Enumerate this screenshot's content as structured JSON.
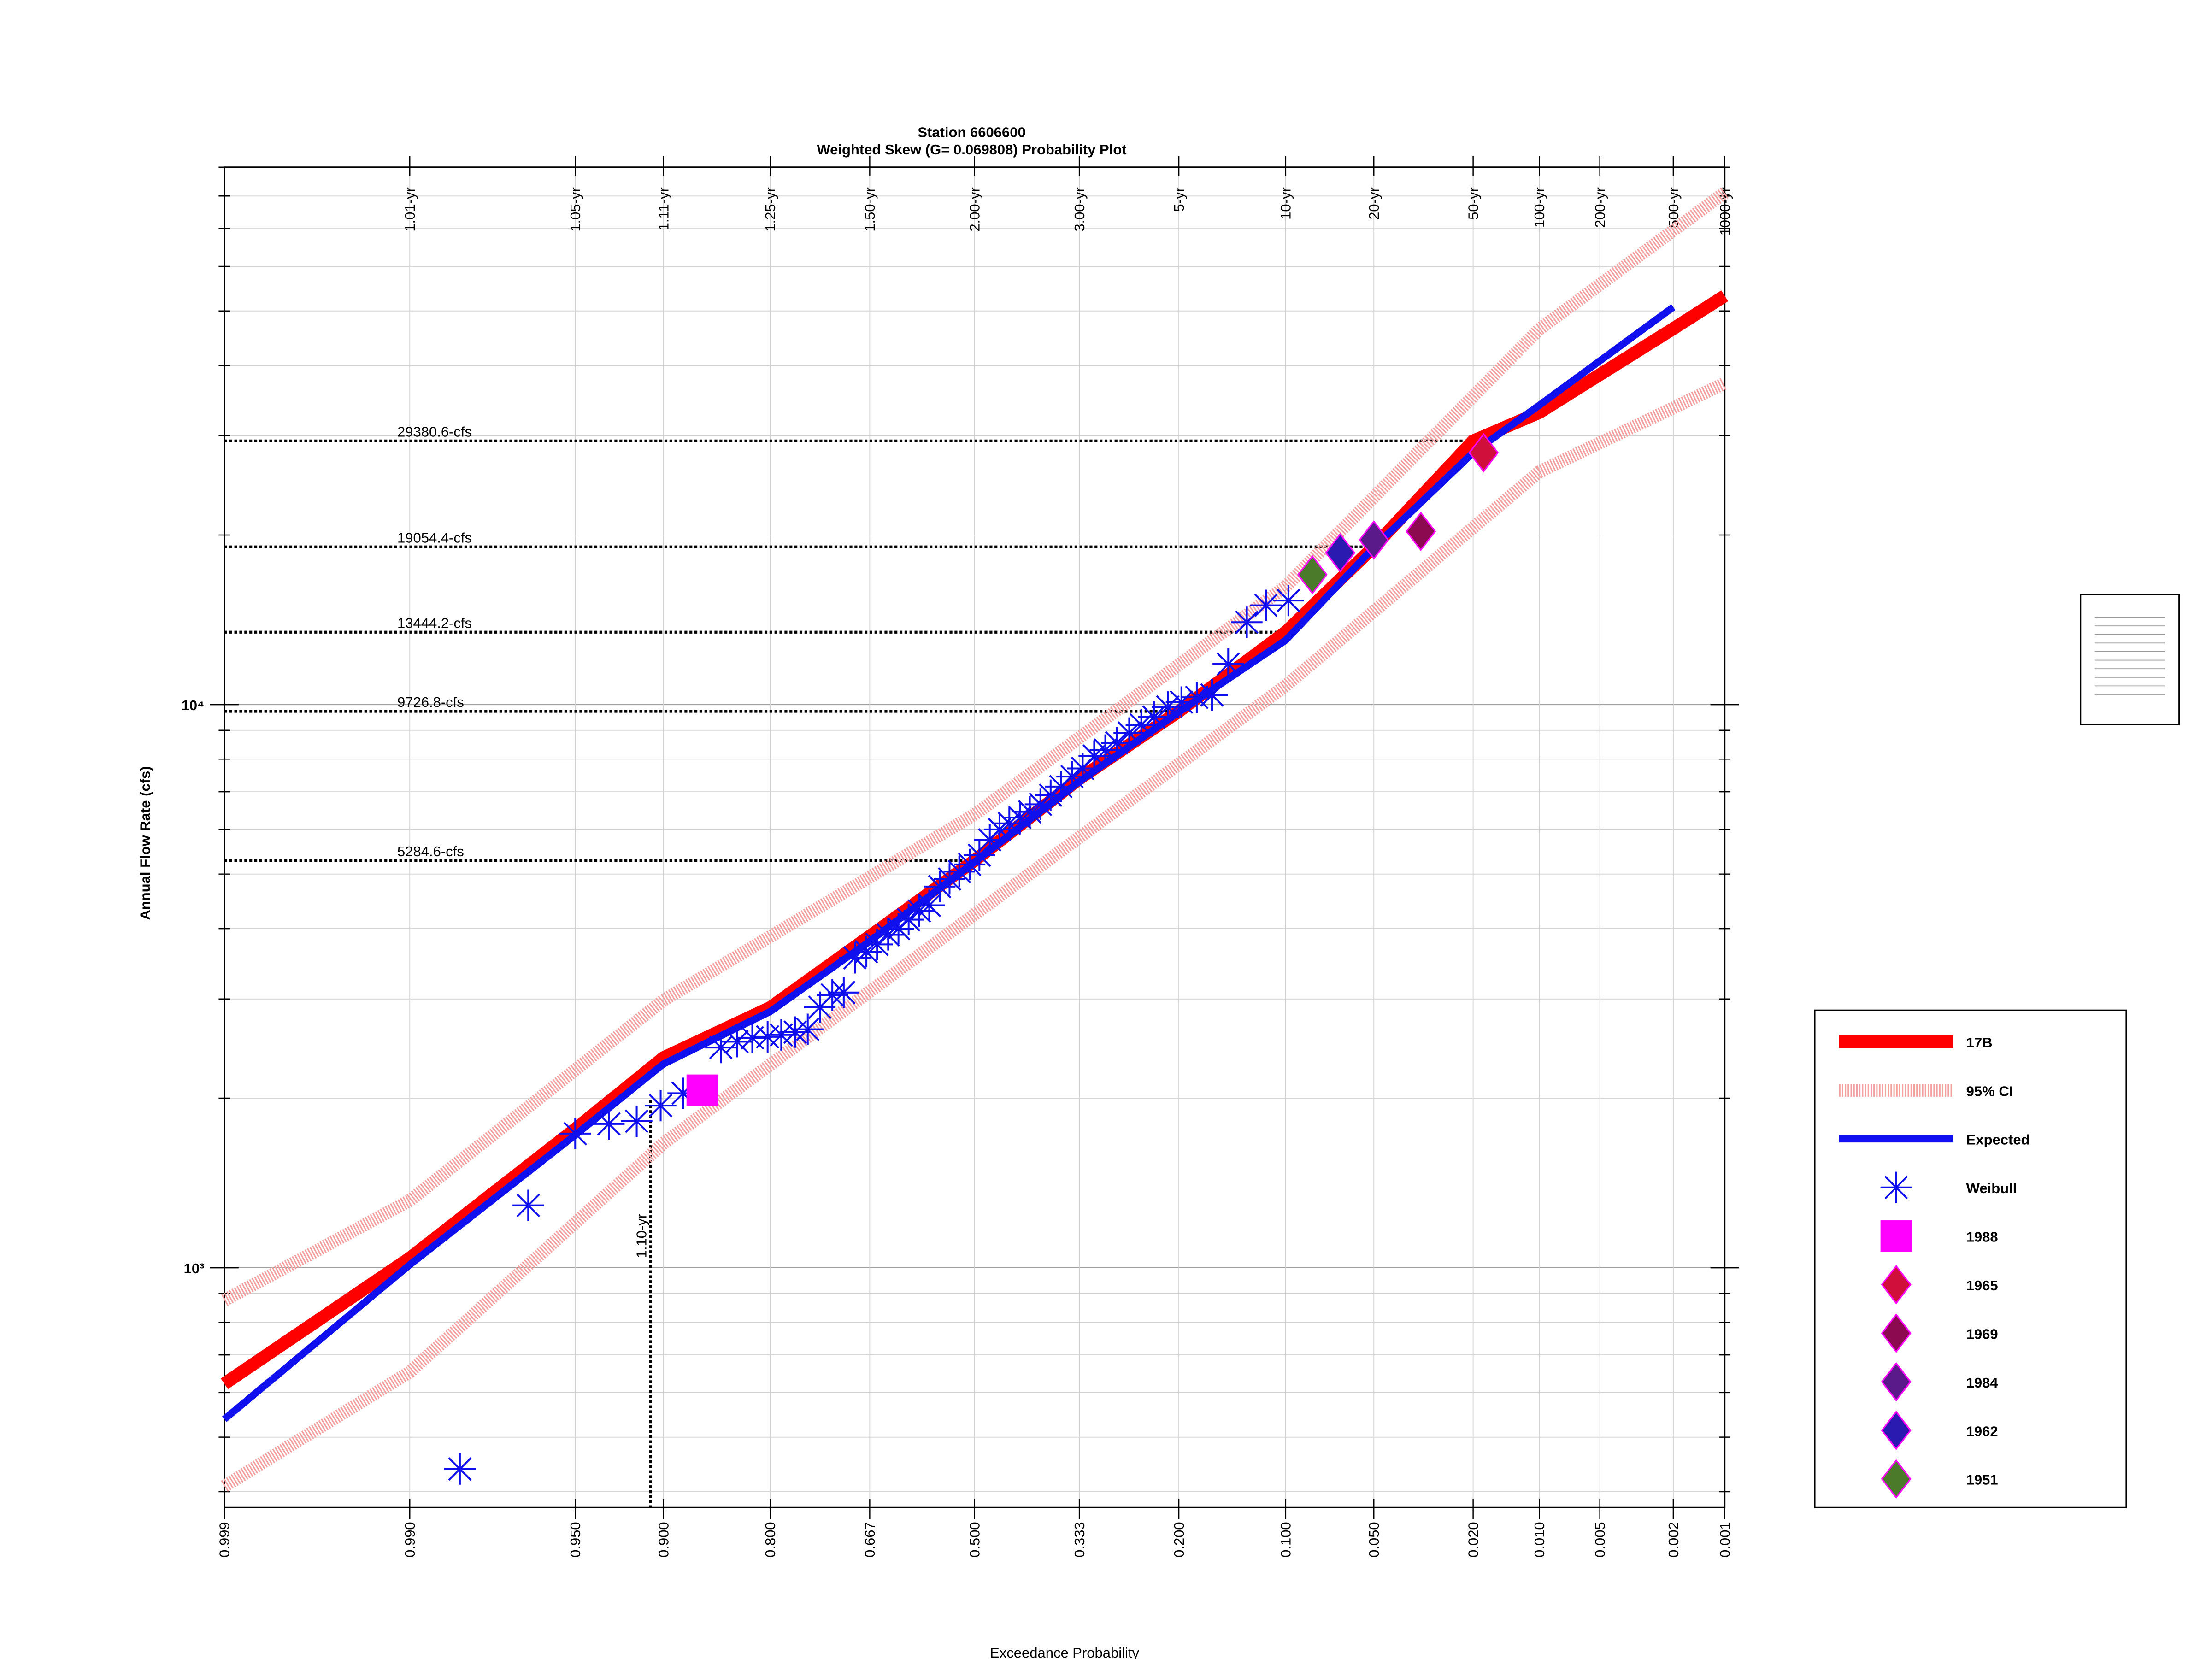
{
  "chart_data": {
    "type": "probability",
    "title": "Station 6606600",
    "subtitle": "Weighted Skew (G= 0.069808) Probability Plot",
    "x_label": "Exceedance Probability",
    "y_label": "Annual Flow Rate (cfs)",
    "xscale": "normal",
    "yscale": "log",
    "grid": true,
    "xlim": [
      0.999,
      0.001
    ],
    "ylim": [
      375,
      90000
    ],
    "xticks": [
      {
        "value": 0.999,
        "label": "0.999"
      },
      {
        "value": 0.99,
        "label": "0.990"
      },
      {
        "value": 0.95,
        "label": "0.950"
      },
      {
        "value": 0.9,
        "label": "0.900"
      },
      {
        "value": 0.8,
        "label": "0.800"
      },
      {
        "value": 0.667,
        "label": "0.667"
      },
      {
        "value": 0.5,
        "label": "0.500"
      },
      {
        "value": 0.333,
        "label": "0.333"
      },
      {
        "value": 0.2,
        "label": "0.200"
      },
      {
        "value": 0.1,
        "label": "0.100"
      },
      {
        "value": 0.05,
        "label": "0.050"
      },
      {
        "value": 0.02,
        "label": "0.020"
      },
      {
        "value": 0.01,
        "label": "0.010"
      },
      {
        "value": 0.005,
        "label": "0.005"
      },
      {
        "value": 0.002,
        "label": "0.002"
      },
      {
        "value": 0.001,
        "label": "0.001"
      }
    ],
    "x2ticks": [
      {
        "value": 0.99,
        "label": "1.01-yr"
      },
      {
        "value": 0.95,
        "label": "1.05-yr"
      },
      {
        "value": 0.9,
        "label": "1.11-yr"
      },
      {
        "value": 0.8,
        "label": "1.25-yr"
      },
      {
        "value": 0.667,
        "label": "1.50-yr"
      },
      {
        "value": 0.5,
        "label": "2.00-yr"
      },
      {
        "value": 0.333,
        "label": "3.00-yr"
      },
      {
        "value": 0.2,
        "label": "5-yr"
      },
      {
        "value": 0.1,
        "label": "10-yr"
      },
      {
        "value": 0.05,
        "label": "20-yr"
      },
      {
        "value": 0.02,
        "label": "50-yr"
      },
      {
        "value": 0.01,
        "label": "100-yr"
      },
      {
        "value": 0.005,
        "label": "200-yr"
      },
      {
        "value": 0.002,
        "label": "500-yr"
      },
      {
        "value": 0.001,
        "label": "1000-yr"
      }
    ],
    "yticks": [
      {
        "value": 1000,
        "label": "10³"
      },
      {
        "value": 10000,
        "label": "10⁴"
      }
    ],
    "yminor": [
      400,
      500,
      600,
      700,
      800,
      900,
      2000,
      3000,
      4000,
      5000,
      6000,
      7000,
      8000,
      9000,
      20000,
      30000,
      40000,
      50000,
      60000,
      70000,
      80000,
      90000
    ],
    "reference_lines": [
      {
        "label": "29380.6-cfs",
        "value": 29380.6,
        "x": 0.02
      },
      {
        "label": "19054.4-cfs",
        "value": 19054.4,
        "x": 0.05
      },
      {
        "label": "13444.2-cfs",
        "value": 13444.2,
        "x": 0.1
      },
      {
        "label": "9726.8-cfs",
        "value": 9726.8,
        "x": 0.2
      },
      {
        "label": "5284.6-cfs",
        "value": 5284.6,
        "x": 0.5
      }
    ],
    "vertical_line": {
      "label": "1.10-yr",
      "x": 0.909,
      "value": 1983
    },
    "series": [
      {
        "name": "17B",
        "style": "line",
        "width": 9,
        "color": "#ff0000",
        "x": [
          0.999,
          0.99,
          0.95,
          0.9,
          0.8,
          0.667,
          0.5,
          0.333,
          0.2,
          0.1,
          0.05,
          0.02,
          0.01,
          0.002,
          0.001
        ],
        "values": [
          622,
          1040,
          1763,
          2360,
          2897,
          3880,
          5284.6,
          7380,
          9726.8,
          13444.2,
          19054.4,
          29380.6,
          33000,
          46500,
          53200
        ]
      },
      {
        "name": "95% CI",
        "style": "band",
        "width": 9,
        "color": "#f4a0a0",
        "x": [
          0.999,
          0.99,
          0.9,
          0.5,
          0.1,
          0.01,
          0.001
        ],
        "values": [
          875,
          1316,
          2985,
          6380,
          16200,
          46400,
          81100
        ],
        "lower": [
          409,
          653,
          1663,
          4240,
          10800,
          25900,
          37200
        ]
      },
      {
        "name": "Expected",
        "style": "line",
        "width": 5,
        "color": "#1010ee",
        "x": [
          0.999,
          0.99,
          0.95,
          0.9,
          0.8,
          0.667,
          0.5,
          0.333,
          0.2,
          0.1,
          0.05,
          0.02,
          0.01,
          0.002
        ],
        "values": [
          538,
          1012,
          1720,
          2300,
          2850,
          3800,
          5250,
          7300,
          9700,
          13000,
          19000,
          28000,
          34000,
          50800
        ]
      },
      {
        "name": "Weibull",
        "style": "star",
        "color": "#1010ee",
        "x": [
          0.983,
          0.967,
          0.95,
          0.934,
          0.918,
          0.902,
          0.885,
          0.852,
          0.836,
          0.82,
          0.803,
          0.787,
          0.77,
          0.754,
          0.738,
          0.721,
          0.705,
          0.689,
          0.672,
          0.656,
          0.639,
          0.623,
          0.607,
          0.59,
          0.574,
          0.557,
          0.541,
          0.525,
          0.508,
          0.492,
          0.475,
          0.459,
          0.443,
          0.426,
          0.41,
          0.393,
          0.377,
          0.361,
          0.344,
          0.328,
          0.311,
          0.295,
          0.279,
          0.262,
          0.246,
          0.23,
          0.213,
          0.197,
          0.18,
          0.164,
          0.148,
          0.131,
          0.115,
          0.098
        ],
        "values": [
          439,
          1290,
          1730,
          1800,
          1820,
          1940,
          2040,
          2460,
          2520,
          2560,
          2570,
          2590,
          2620,
          2650,
          2900,
          3050,
          3080,
          3550,
          3640,
          3750,
          3900,
          4000,
          4150,
          4300,
          4400,
          4750,
          4900,
          5050,
          5200,
          5400,
          5750,
          6000,
          6150,
          6300,
          6450,
          6650,
          6900,
          7150,
          7450,
          7700,
          8100,
          8300,
          8550,
          8900,
          9200,
          9500,
          9900,
          10100,
          10300,
          10400,
          11800,
          14000,
          15000,
          15300
        ]
      },
      {
        "name": "1988",
        "style": "square",
        "color": "#ff00ff",
        "x": [
          0.869
        ],
        "values": [
          2066
        ]
      },
      {
        "name": "1965",
        "style": "diamond",
        "color": "#d0103a",
        "x": [
          0.018
        ],
        "values": [
          28000
        ]
      },
      {
        "name": "1969",
        "style": "diamond",
        "color": "#8b0a50",
        "x": [
          0.033
        ],
        "values": [
          20300
        ]
      },
      {
        "name": "1984",
        "style": "diamond",
        "color": "#5a1a8a",
        "x": [
          0.05
        ],
        "values": [
          19600
        ]
      },
      {
        "name": "1962",
        "style": "diamond",
        "color": "#2a1ab0",
        "x": [
          0.066
        ],
        "values": [
          18600
        ]
      },
      {
        "name": "1951",
        "style": "diamond",
        "color": "#4a7a2a",
        "x": [
          0.082
        ],
        "values": [
          17000
        ]
      }
    ]
  }
}
